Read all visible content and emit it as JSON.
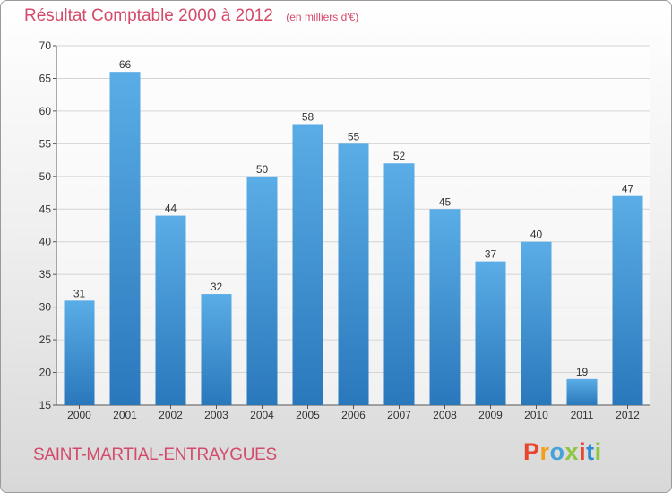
{
  "header": {
    "title": "Résultat Comptable 2000 à 2012",
    "unit": "(en milliers d'€)"
  },
  "footer": {
    "commune": "SAINT-MARTIAL-ENTRAYGUES",
    "logo_text": "Proxiti",
    "logo_colors": [
      "#e8452c",
      "#f2a01c",
      "#46a2d8",
      "#8cc63f",
      "#e8452c",
      "#2a8cd4",
      "#8cc63f"
    ]
  },
  "chart_data": {
    "type": "bar",
    "categories": [
      "2000",
      "2001",
      "2002",
      "2003",
      "2004",
      "2005",
      "2006",
      "2007",
      "2008",
      "2009",
      "2010",
      "2011",
      "2012"
    ],
    "values": [
      31,
      66,
      44,
      32,
      50,
      58,
      55,
      52,
      45,
      37,
      40,
      19,
      47
    ],
    "title": "Résultat Comptable 2000 à 2012",
    "xlabel": "",
    "ylabel": "",
    "ylim": [
      15,
      70
    ],
    "yticks": [
      15,
      20,
      25,
      30,
      35,
      40,
      45,
      50,
      55,
      60,
      65,
      70
    ],
    "grid": true,
    "bar_color_light": "#5aade6",
    "bar_color_dark": "#2a78bc",
    "text_color": "#d44a6a"
  }
}
